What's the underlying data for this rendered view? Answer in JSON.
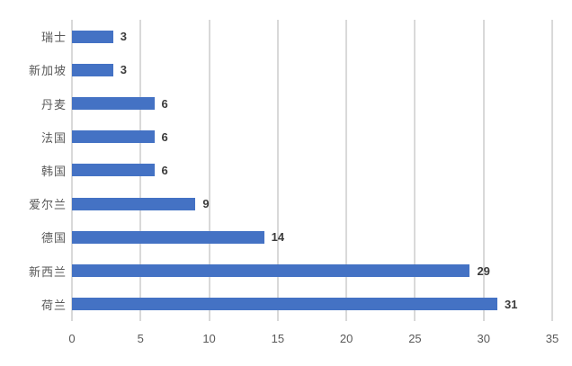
{
  "chart_data": {
    "type": "bar",
    "orientation": "horizontal",
    "title": "",
    "xlabel": "",
    "ylabel": "",
    "categories": [
      "瑞士",
      "新加坡",
      "丹麦",
      "法国",
      "韩国",
      "爱尔兰",
      "德国",
      "新西兰",
      "荷兰"
    ],
    "values": [
      3,
      3,
      6,
      6,
      6,
      9,
      14,
      29,
      31
    ],
    "data_labels": [
      "3",
      "3",
      "6",
      "6",
      "6",
      "9",
      "14",
      "29",
      "31"
    ],
    "xlim": [
      0,
      35
    ],
    "xticks": [
      0,
      5,
      10,
      15,
      20,
      25,
      30,
      35
    ],
    "grid": "vertical-only",
    "legend": "none",
    "colors": {
      "bar": "#4472C4",
      "gridline": "#D9D9D9",
      "axis_text": "#595959",
      "data_label": "#3B3B3B",
      "background": "#FFFFFF"
    }
  }
}
